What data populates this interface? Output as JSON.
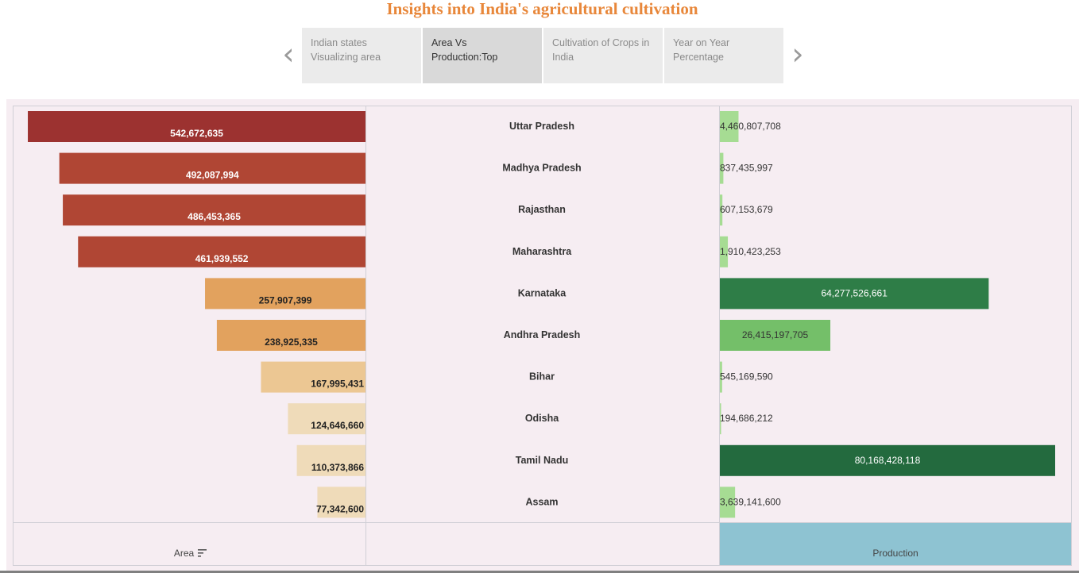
{
  "page": {
    "title": "Insights into India's agricultural cultivation"
  },
  "navigation": {
    "prev_icon": "chevron-left-icon",
    "next_icon": "chevron-right-icon",
    "tabs": [
      {
        "line1": "Indian states",
        "line2": "Visualizing area",
        "active": false
      },
      {
        "line1": "Area Vs",
        "line2": "Production:Top",
        "active": true
      },
      {
        "line1": "Cultivation of Crops in",
        "line2": "India",
        "active": false
      },
      {
        "line1": "Year on Year",
        "line2": "Percentage",
        "active": false
      }
    ]
  },
  "chart_data": {
    "type": "bar",
    "orientation": "horizontal",
    "categories": [
      "Uttar Pradesh",
      "Madhya Pradesh",
      "Rajasthan",
      "Maharashtra",
      "Karnataka",
      "Andhra Pradesh",
      "Bihar",
      "Odisha",
      "Tamil Nadu",
      "Assam"
    ],
    "series": [
      {
        "name": "Area",
        "values": [
          542672635,
          492087994,
          486453365,
          461939552,
          257907399,
          238925335,
          167995431,
          124646660,
          110373866,
          77342600
        ],
        "labels": [
          "542,672,635",
          "492,087,994",
          "486,453,365",
          "461,939,552",
          "257,907,399",
          "238,925,335",
          "167,995,431",
          "124,646,660",
          "110,373,866",
          "77,342,600"
        ],
        "direction": "right-to-left"
      },
      {
        "name": "Production",
        "values": [
          4460807708,
          837435997,
          607153679,
          1910423253,
          64277526661,
          26415197705,
          545169590,
          194686212,
          80168428118,
          3639141600
        ],
        "labels": [
          "4,460,807,708",
          "837,435,997",
          "607,153,679",
          "1,910,423,253",
          "64,277,526,661",
          "26,415,197,705",
          "545,169,590",
          "194,686,212",
          "80,168,428,118",
          "3,639,141,600"
        ],
        "direction": "left-to-right"
      }
    ],
    "area_xlim": [
      0,
      560000000
    ],
    "production_xlim": [
      0,
      84000000000
    ],
    "xlabel_area": "Area",
    "xlabel_production": "Production",
    "area_sort_icon": "sort-descending-icon",
    "colors": {
      "area_dark": "#9c3230",
      "area_red": "#b04634",
      "area_orange": "#e2a25e",
      "area_tan": "#ecc793",
      "area_light": "#efdbb9",
      "prod_light": "#a6dc93",
      "prod_mid": "#74bf69",
      "prod_dark": "#2e7d47",
      "prod_darkest": "#236a3e",
      "production_axis_bg": "#8ec3d2",
      "panel_bg": "#f6edf2",
      "title": "#e8873a"
    }
  }
}
